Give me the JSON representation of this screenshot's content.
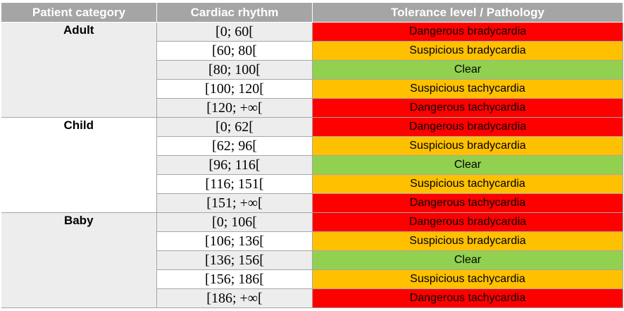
{
  "colors": {
    "header_bg": "#a5a5a5",
    "row_shade": "#ededed",
    "danger": "#ff0000",
    "suspicious": "#ffc000",
    "clear": "#92d050"
  },
  "header": {
    "category": "Patient category",
    "rhythm": "Cardiac rhythm",
    "tolerance": "Tolerance level / Pathology"
  },
  "groups": [
    {
      "category": "Adult",
      "rows": [
        {
          "rate": "[0; 60[",
          "pathology": "Dangerous bradycardia",
          "level": "danger"
        },
        {
          "rate": "[60; 80[",
          "pathology": "Suspicious bradycardia",
          "level": "suspicious"
        },
        {
          "rate": "[80; 100[",
          "pathology": "Clear",
          "level": "clear"
        },
        {
          "rate": "[100; 120[",
          "pathology": "Suspicious tachycardia",
          "level": "suspicious"
        },
        {
          "rate": "[120; +∞[",
          "pathology": "Dangerous tachycardia",
          "level": "danger"
        }
      ]
    },
    {
      "category": "Child",
      "rows": [
        {
          "rate": "[0; 62[",
          "pathology": "Dangerous bradycardia",
          "level": "danger"
        },
        {
          "rate": "[62; 96[",
          "pathology": "Suspicious bradycardia",
          "level": "suspicious"
        },
        {
          "rate": "[96; 116[",
          "pathology": "Clear",
          "level": "clear"
        },
        {
          "rate": "[116; 151[",
          "pathology": "Suspicious tachycardia",
          "level": "suspicious"
        },
        {
          "rate": "[151; +∞[",
          "pathology": "Dangerous tachycardia",
          "level": "danger"
        }
      ]
    },
    {
      "category": "Baby",
      "rows": [
        {
          "rate": "[0; 106[",
          "pathology": "Dangerous bradycardia",
          "level": "danger"
        },
        {
          "rate": "[106; 136[",
          "pathology": "Suspicious bradycardia",
          "level": "suspicious"
        },
        {
          "rate": "[136; 156[",
          "pathology": "Clear",
          "level": "clear"
        },
        {
          "rate": "[156; 186[",
          "pathology": "Suspicious tachycardia",
          "level": "suspicious"
        },
        {
          "rate": "[186; +∞[",
          "pathology": "Dangerous tachycardia",
          "level": "danger"
        }
      ]
    }
  ]
}
